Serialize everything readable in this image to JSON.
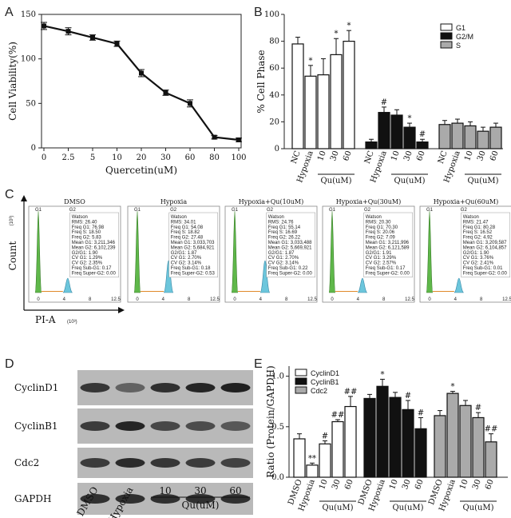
{
  "panels": {
    "A": "A",
    "B": "B",
    "C": "C",
    "D": "D",
    "E": "E"
  },
  "chart_data": [
    {
      "id": "A",
      "type": "line",
      "xlabel": "Quercetin(uM)",
      "ylabel": "Cell Viability(%)",
      "categories": [
        "0",
        "2.5",
        "5",
        "10",
        "20",
        "30",
        "60",
        "80",
        "100"
      ],
      "values": [
        137,
        131,
        124,
        117,
        84,
        62,
        50,
        12,
        9
      ],
      "errors": [
        4,
        4,
        3,
        3,
        4,
        3,
        4,
        2,
        2
      ],
      "ylim": [
        0,
        150
      ],
      "yticks": [
        0,
        50,
        100,
        150
      ]
    },
    {
      "id": "B",
      "type": "bar",
      "ylabel": "% Cell Phase",
      "ylim": [
        0,
        100
      ],
      "yticks": [
        0,
        20,
        40,
        60,
        80,
        100
      ],
      "legend": [
        "G1",
        "G2/M",
        "S"
      ],
      "colors": {
        "G1": "#ffffff",
        "G2/M": "#111111",
        "S": "#aaaaaa"
      },
      "group_labels": [
        "NC",
        "Hypoxia",
        "10",
        "30",
        "60"
      ],
      "qu_label": "Qu(uM)",
      "series": [
        {
          "name": "G1",
          "values": [
            78,
            54,
            55,
            70,
            80
          ],
          "errors": [
            5,
            8,
            12,
            12,
            8
          ],
          "marks": [
            "",
            "*",
            "",
            "*",
            "*"
          ]
        },
        {
          "name": "G2/M",
          "values": [
            5,
            27,
            25,
            16,
            5
          ],
          "errors": [
            2,
            4,
            4,
            3,
            2
          ],
          "marks": [
            "",
            "#",
            "",
            "*",
            "#"
          ]
        },
        {
          "name": "S",
          "values": [
            18,
            19,
            17,
            13,
            16
          ],
          "errors": [
            3,
            3,
            3,
            3,
            3
          ],
          "marks": [
            "",
            "",
            "",
            "",
            ""
          ]
        }
      ]
    },
    {
      "id": "E",
      "type": "bar",
      "ylabel": "Ratio (Protein/GAPDH)",
      "ylim": [
        0,
        1.1
      ],
      "yticks": [
        0.0,
        0.5,
        1.0
      ],
      "legend": [
        "CyclinD1",
        "CyclinB1",
        "Cdc2"
      ],
      "colors": {
        "CyclinD1": "#ffffff",
        "CyclinB1": "#111111",
        "Cdc2": "#aaaaaa"
      },
      "group_labels": [
        "DMSO",
        "Hypoxia",
        "10",
        "30",
        "60"
      ],
      "qu_label": "Qu(uM)",
      "series": [
        {
          "name": "CyclinD1",
          "values": [
            0.38,
            0.12,
            0.33,
            0.55,
            0.7
          ],
          "errors": [
            0.05,
            0.02,
            0.03,
            0.02,
            0.1
          ],
          "marks": [
            "",
            "**",
            "#",
            "##",
            "##"
          ]
        },
        {
          "name": "CyclinB1",
          "values": [
            0.78,
            0.9,
            0.79,
            0.67,
            0.48
          ],
          "errors": [
            0.04,
            0.07,
            0.05,
            0.09,
            0.11
          ],
          "marks": [
            "",
            "*",
            "",
            "#",
            "#"
          ]
        },
        {
          "name": "Cdc2",
          "values": [
            0.61,
            0.83,
            0.71,
            0.59,
            0.35
          ],
          "errors": [
            0.05,
            0.02,
            0.05,
            0.05,
            0.08
          ],
          "marks": [
            "",
            "*",
            "",
            "#",
            "##"
          ]
        }
      ]
    }
  ],
  "flow": {
    "count_label": "Count",
    "count_exp": "(10³)",
    "x_label": "PI-A",
    "x_exp": "(10³)",
    "xticks": [
      "0",
      "4",
      "8",
      "12.5"
    ],
    "panels": [
      {
        "title": "DMSO",
        "g2x": 0.32,
        "stats": [
          "Watson",
          "RMS: 26.40",
          "Freq G1: 76.98",
          "Freq S: 18.50",
          "Freq G2: 5.83",
          "Mean G1: 3,211,346",
          "Mean G2: 6,102,239",
          "G2/G1: 1.90",
          "CV G1: 1.29%",
          "CV G2: 2.35%",
          "Freq Sub-G1: 0.17",
          "Freq Super-G2: 0.00"
        ]
      },
      {
        "title": "Hypoxia",
        "g2x": 0.34,
        "stats": [
          "Watson",
          "RMS: 34.01",
          "Freq G1: 54.08",
          "Freq S: 18.82",
          "Freq G2: 27.48",
          "Mean G1: 3,033,703",
          "Mean G2: 5,684,921",
          "G2/G1: 1.87",
          "CV G1: 2.70%",
          "CV G2: 3.14%",
          "Freq Sub-G1: 0.18",
          "Freq Super-G2: 0.53"
        ]
      },
      {
        "title": "Hypoxia+Qu(10uM)",
        "g2x": 0.33,
        "stats": [
          "Watson",
          "RMS: 24.76",
          "Freq G1: 55.14",
          "Freq S: 16.69",
          "Freq G2: 26.22",
          "Mean G1: 3,033,488",
          "Mean G2: 5,669,921",
          "G2/G1: 1.87",
          "CV G1: 2.70%",
          "CV G2: 3.14%",
          "Freq Sub-G1: 0.22",
          "Freq Super-G2: 0.00"
        ]
      },
      {
        "title": "Hypoxia+Qu(30uM)",
        "g2x": 0.33,
        "stats": [
          "Watson",
          "RMS: 20.30",
          "Freq G1: 70.30",
          "Freq S: 20.06",
          "Freq G2: 7.09",
          "Mean G1: 3,211,996",
          "Mean G2: 6,121,589",
          "G2/G1: 1.91",
          "CV G1: 3.29%",
          "CV G2: 2.57%",
          "Freq Sub-G1: 0.17",
          "Freq Super-G2: 0.00"
        ]
      },
      {
        "title": "Hypoxia+Qu(60uM)",
        "g2x": 0.32,
        "stats": [
          "Watson",
          "RMS: 21.47",
          "Freq G1: 80.28",
          "Freq S: 16.52",
          "Freq G2: 4.92",
          "Mean G1: 3,209,587",
          "Mean G2: 6,104,857",
          "G2/G1: 1.90",
          "CV G1: 3.76%",
          "CV G2: 2.41%",
          "Freq Sub-G1: 0.01",
          "Freq Super-G2: 0.00"
        ]
      }
    ]
  },
  "blot": {
    "proteins": [
      "CyclinD1",
      "CyclinB1",
      "Cdc2",
      "GAPDH"
    ],
    "lanes": [
      "DMSO",
      "Hypoxia",
      "10",
      "30",
      "60"
    ],
    "qu_label": "Qu(uM)",
    "intensity": [
      [
        0.75,
        0.35,
        0.8,
        0.9,
        0.95
      ],
      [
        0.7,
        0.9,
        0.6,
        0.55,
        0.45
      ],
      [
        0.7,
        0.85,
        0.75,
        0.7,
        0.65
      ],
      [
        0.8,
        0.8,
        0.8,
        0.8,
        0.8
      ]
    ]
  }
}
